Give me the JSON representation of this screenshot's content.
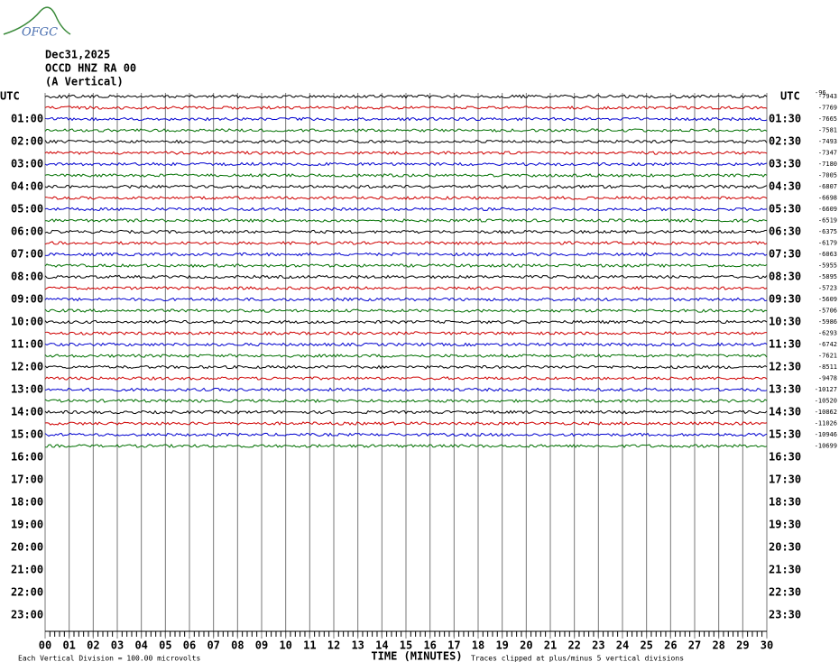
{
  "header": {
    "logo": "OFGC",
    "date": "Dec31,2025",
    "channel": "OCCD HNZ RA 00",
    "component": "(A Vertical)",
    "corner_note": "-96"
  },
  "left_axis": {
    "title": "UTC",
    "labels": [
      "01:00",
      "02:00",
      "03:00",
      "04:00",
      "05:00",
      "06:00",
      "07:00",
      "08:00",
      "09:00",
      "10:00",
      "11:00",
      "12:00",
      "13:00",
      "14:00",
      "15:00",
      "16:00",
      "17:00",
      "18:00",
      "19:00",
      "20:00",
      "21:00",
      "22:00",
      "23:00"
    ]
  },
  "right_axis": {
    "title": "UTC",
    "labels": [
      "01:30",
      "02:30",
      "03:30",
      "04:30",
      "05:30",
      "06:30",
      "07:30",
      "08:30",
      "09:30",
      "10:30",
      "11:30",
      "12:30",
      "13:30",
      "14:30",
      "15:30",
      "16:30",
      "17:30",
      "18:30",
      "19:30",
      "20:30",
      "21:30",
      "22:30",
      "23:30"
    ]
  },
  "x_axis": {
    "title": "TIME (MINUTES)",
    "xlim": [
      0,
      30
    ],
    "ticks": [
      {
        "value": 0,
        "label": "00"
      },
      {
        "value": 1,
        "label": "01"
      },
      {
        "value": 2,
        "label": "02"
      },
      {
        "value": 3,
        "label": "03"
      },
      {
        "value": 4,
        "label": "04"
      },
      {
        "value": 5,
        "label": "05"
      },
      {
        "value": 6,
        "label": "06"
      },
      {
        "value": 7,
        "label": "07"
      },
      {
        "value": 8,
        "label": "08"
      },
      {
        "value": 9,
        "label": "09"
      },
      10,
      11,
      12,
      13,
      14,
      15,
      16,
      17,
      18,
      19,
      20,
      21,
      22,
      23,
      24,
      25,
      26,
      27,
      28,
      29,
      30
    ]
  },
  "footer": {
    "scale": "Each Vertical Division =  100.00 microvolts",
    "clip": "Traces clipped at plus/minus 5 vertical divisions"
  },
  "traces": [
    {
      "color": "#000000",
      "offset": -7943
    },
    {
      "color": "#d00000",
      "offset": -7769
    },
    {
      "color": "#0000d0",
      "offset": -7665
    },
    {
      "color": "#007000",
      "offset": -7581
    },
    {
      "color": "#000000",
      "offset": -7493
    },
    {
      "color": "#d00000",
      "offset": -7347
    },
    {
      "color": "#0000d0",
      "offset": -7180
    },
    {
      "color": "#007000",
      "offset": -7005
    },
    {
      "color": "#000000",
      "offset": -6807
    },
    {
      "color": "#d00000",
      "offset": -6698
    },
    {
      "color": "#0000d0",
      "offset": -6609
    },
    {
      "color": "#007000",
      "offset": -6519
    },
    {
      "color": "#000000",
      "offset": -6375
    },
    {
      "color": "#d00000",
      "offset": -6179
    },
    {
      "color": "#0000d0",
      "offset": -6063
    },
    {
      "color": "#007000",
      "offset": -5955
    },
    {
      "color": "#000000",
      "offset": -5895
    },
    {
      "color": "#d00000",
      "offset": -5723
    },
    {
      "color": "#0000d0",
      "offset": -5609
    },
    {
      "color": "#007000",
      "offset": -5706
    },
    {
      "color": "#000000",
      "offset": -5986
    },
    {
      "color": "#d00000",
      "offset": -6293
    },
    {
      "color": "#0000d0",
      "offset": -6742
    },
    {
      "color": "#007000",
      "offset": -7621
    },
    {
      "color": "#000000",
      "offset": -8511
    },
    {
      "color": "#d00000",
      "offset": -9478
    },
    {
      "color": "#0000d0",
      "offset": -10127
    },
    {
      "color": "#007000",
      "offset": -10520
    },
    {
      "color": "#000000",
      "offset": -10862
    },
    {
      "color": "#d00000",
      "offset": -11026
    },
    {
      "color": "#0000d0",
      "offset": -10946
    },
    {
      "color": "#007000",
      "offset": -10699
    }
  ]
}
